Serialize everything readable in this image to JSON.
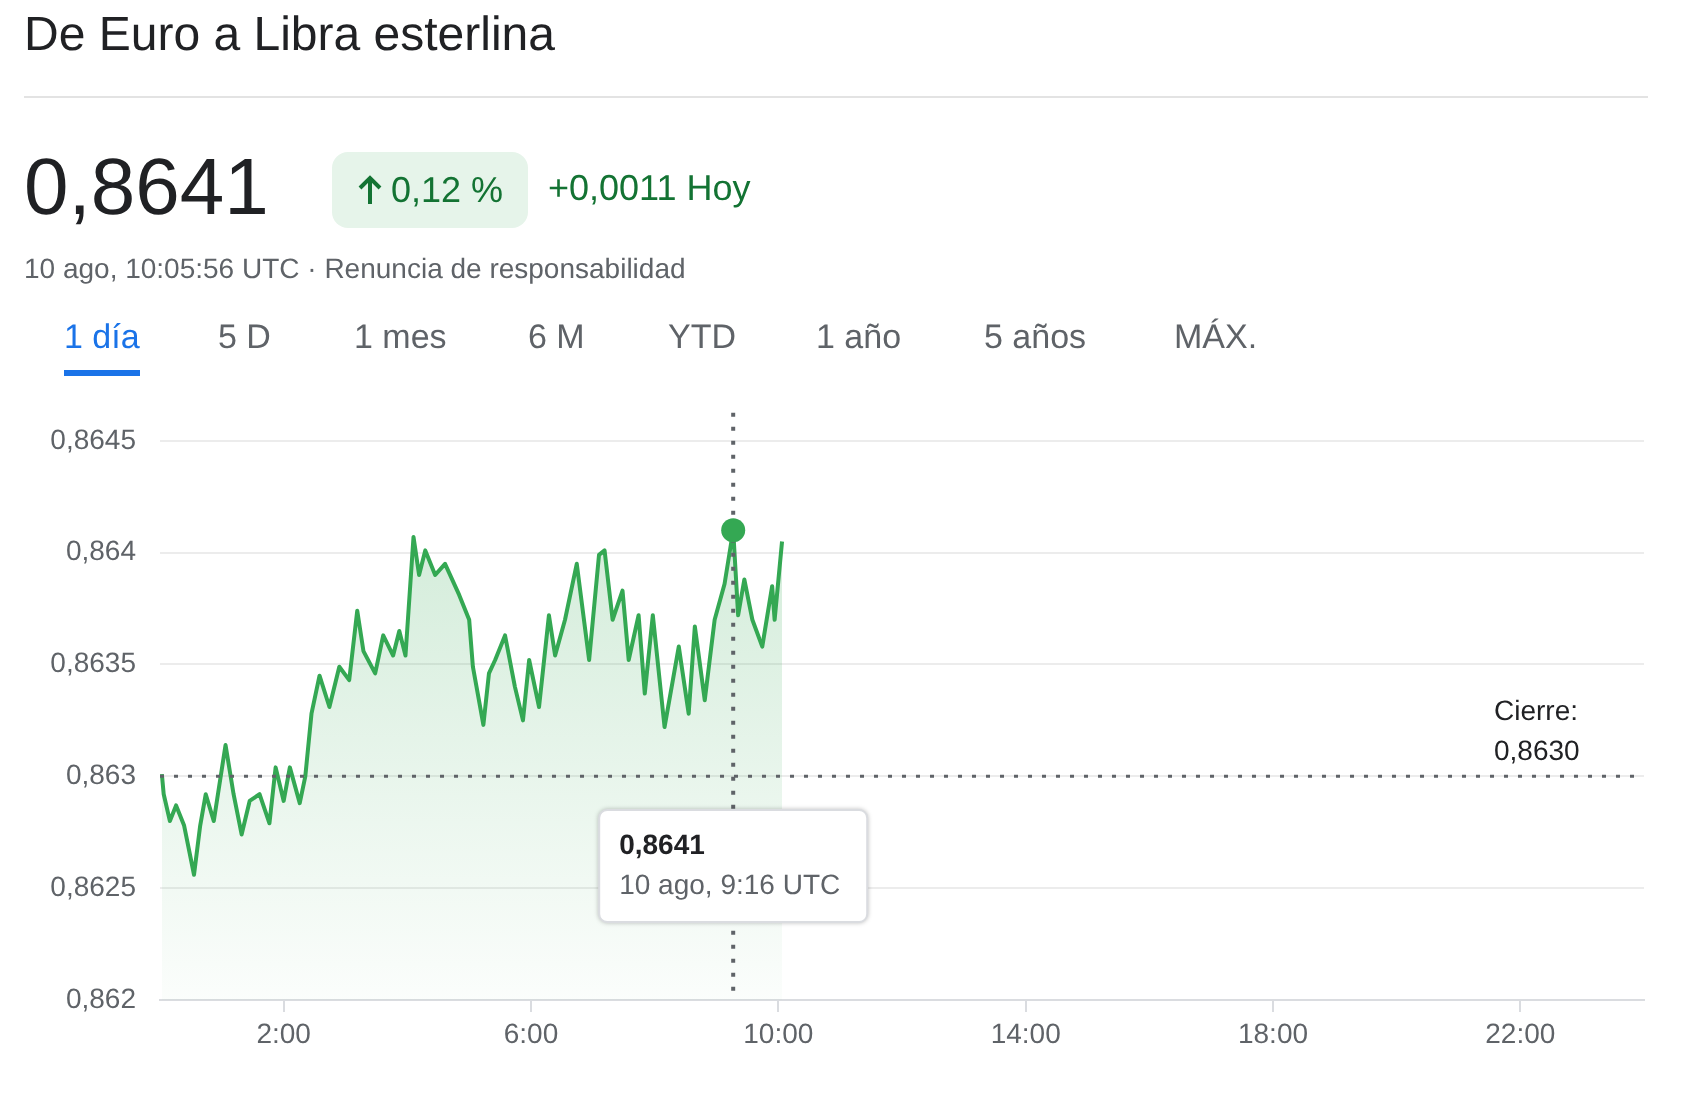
{
  "chart_data": {
    "type": "area",
    "title": "De Euro a Libra esterlina",
    "annotations": [
      "0,8641",
      "0,12 %",
      "+0,0011 Hoy",
      "10 ago, 10:05:56 UTC · Renuncia de responsabilidad",
      "1 día",
      "5 D",
      "1 mes",
      "6 M",
      "YTD",
      "1 año",
      "5 años",
      "MÁX.",
      "0,8641\n10 ago, 9:16 UTC"
    ],
    "series": [
      {
        "color": "#34a853",
        "x": [
          0.03,
          0.06,
          0.16,
          0.26,
          0.39,
          0.55,
          0.65,
          0.74,
          0.87,
          1.06,
          1.19,
          1.32,
          1.45,
          1.61,
          1.77,
          1.87,
          2.0,
          2.1,
          2.26,
          2.35,
          2.45,
          2.58,
          2.74,
          2.9,
          3.06,
          3.19,
          3.29,
          3.48,
          3.61,
          3.77,
          3.87,
          3.97,
          4.1,
          4.19,
          4.29,
          4.45,
          4.61,
          4.84,
          5.0,
          5.06,
          5.23,
          5.32,
          5.42,
          5.58,
          5.74,
          5.87,
          5.97,
          6.13,
          6.29,
          6.39,
          6.55,
          6.74,
          6.94,
          7.1,
          7.19,
          7.32,
          7.48,
          7.58,
          7.74,
          7.84,
          7.97,
          8.16,
          8.39,
          8.55,
          8.65,
          8.81,
          8.97,
          9.13,
          9.27,
          9.35,
          9.45,
          9.58,
          9.74,
          9.9,
          9.94,
          10.06
        ],
        "values": [
          0.86301,
          0.86292,
          0.8628,
          0.86287,
          0.86278,
          0.86256,
          0.86278,
          0.86292,
          0.8628,
          0.86314,
          0.86292,
          0.86274,
          0.86289,
          0.86292,
          0.86279,
          0.86304,
          0.86289,
          0.86304,
          0.86288,
          0.863,
          0.86328,
          0.86345,
          0.86331,
          0.86349,
          0.86343,
          0.86374,
          0.86356,
          0.86346,
          0.86363,
          0.86354,
          0.86365,
          0.86354,
          0.86407,
          0.8639,
          0.86401,
          0.8639,
          0.86395,
          0.86381,
          0.8637,
          0.86349,
          0.86323,
          0.86346,
          0.86352,
          0.86363,
          0.8634,
          0.86325,
          0.86352,
          0.86331,
          0.86372,
          0.86354,
          0.8637,
          0.86395,
          0.86352,
          0.86399,
          0.86401,
          0.8637,
          0.86383,
          0.86352,
          0.86372,
          0.86337,
          0.86372,
          0.86322,
          0.86358,
          0.86328,
          0.86367,
          0.86334,
          0.8637,
          0.86386,
          0.8641,
          0.86372,
          0.86388,
          0.8637,
          0.86358,
          0.86385,
          0.8637,
          0.86405
        ]
      }
    ],
    "xlim": [
      0,
      24
    ],
    "xticks": [
      {
        "value": 2,
        "label": "2:00"
      },
      {
        "value": 6,
        "label": "6:00"
      },
      {
        "value": 10,
        "label": "10:00"
      },
      {
        "value": 14,
        "label": "14:00"
      },
      {
        "value": 18,
        "label": "18:00"
      },
      {
        "value": 22,
        "label": "22:00"
      }
    ],
    "ylim": [
      0.862,
      0.8645
    ],
    "yticks": [
      {
        "value": 0.862,
        "label": "0,862"
      },
      {
        "value": 0.8625,
        "label": "0,8625"
      },
      {
        "value": 0.863,
        "label": "0,863"
      },
      {
        "value": 0.8635,
        "label": "0,8635"
      },
      {
        "value": 0.864,
        "label": "0,864"
      },
      {
        "value": 0.8645,
        "label": "0,8645"
      }
    ],
    "ref_lines": [
      {
        "axis": "y",
        "value": 0.863,
        "label": "Cierre:\n0,8630",
        "line_style": "dotted"
      },
      {
        "axis": "x",
        "value": 9.27,
        "label": null,
        "line_style": "dotted"
      }
    ],
    "grid": "y",
    "legend": false,
    "marker": "none",
    "line_style": "solid"
  }
}
